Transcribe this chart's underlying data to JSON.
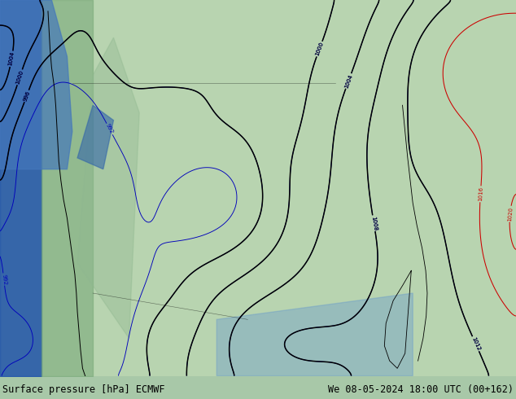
{
  "bottom_left_text": "Surface pressure [hPa] ECMWF",
  "bottom_right_text": "We 08-05-2024 18:00 UTC (00+162)",
  "fig_width": 6.34,
  "fig_height": 4.9,
  "dpi": 100,
  "text_color": "#000000",
  "font_size": 8.5,
  "bottom_bar_bg": "#c8dfc8",
  "map_bg_green": "#a8c8a8",
  "land_green_light": "#b8d4b0",
  "land_green_med": "#90b890",
  "ocean_blue": "#6090c0",
  "west_dark": "#1a3a6a",
  "contour_blue": "#0000bb",
  "contour_red": "#cc0000",
  "contour_black": "#000000",
  "contour_interval": 4,
  "pressure_base": 1000,
  "pressure_min": 992,
  "pressure_max": 1024
}
